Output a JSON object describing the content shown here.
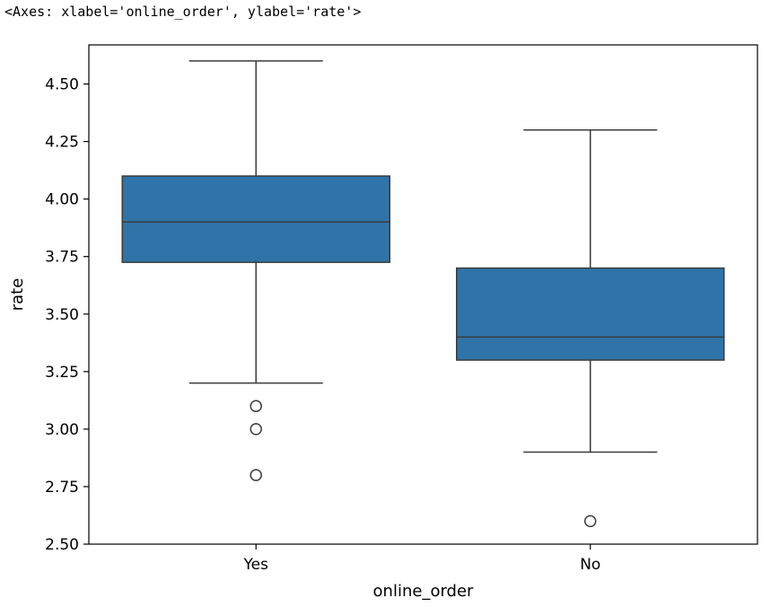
{
  "output": {
    "repr_text": "<Axes: xlabel='online_order', ylabel='rate'>"
  },
  "chart_data": {
    "type": "box",
    "title": "",
    "xlabel": "online_order",
    "ylabel": "rate",
    "ylim": [
      2.5,
      4.67
    ],
    "yticks": [
      2.5,
      2.75,
      3.0,
      3.25,
      3.5,
      3.75,
      4.0,
      4.25,
      4.5
    ],
    "ytick_labels": [
      "2.50",
      "2.75",
      "3.00",
      "3.25",
      "3.50",
      "3.75",
      "4.00",
      "4.25",
      "4.50"
    ],
    "grid": false,
    "box_color": "#2f74a8",
    "line_color": "#3b3b3b",
    "categories": [
      "Yes",
      "No"
    ],
    "boxes": [
      {
        "category": "Yes",
        "whisker_low": 3.2,
        "q1": 3.725,
        "median": 3.9,
        "q3": 4.1,
        "whisker_high": 4.6,
        "outliers": [
          3.1,
          3.0,
          2.8
        ]
      },
      {
        "category": "No",
        "whisker_low": 2.9,
        "q1": 3.3,
        "median": 3.4,
        "q3": 3.7,
        "whisker_high": 4.3,
        "outliers": [
          2.6
        ]
      }
    ]
  }
}
